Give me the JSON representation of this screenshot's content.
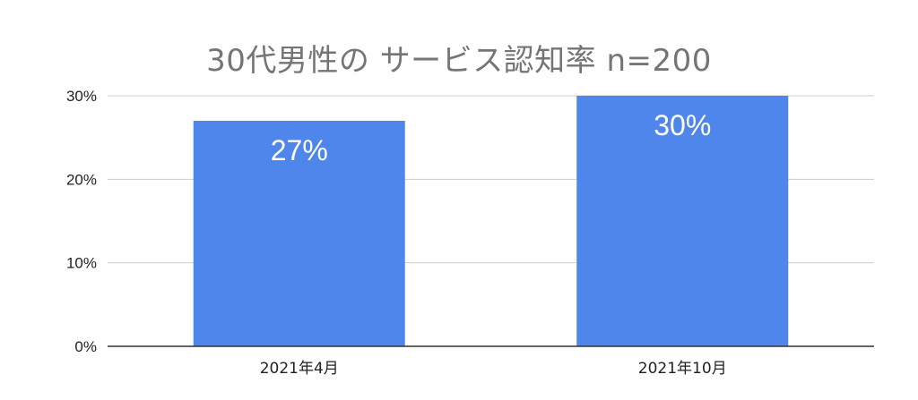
{
  "chart_data": {
    "type": "bar",
    "title": "30代男性の サービス認知率 n=200",
    "categories": [
      "2021年4月",
      "2021年10月"
    ],
    "values": [
      27,
      30
    ],
    "data_labels": [
      "27%",
      "30%"
    ],
    "ylim": [
      0,
      30
    ],
    "yticks": [
      0,
      10,
      20,
      30
    ],
    "ytick_labels": [
      "0%",
      "10%",
      "20%",
      "30%"
    ],
    "grid": true,
    "bar_color": "#4f86ec",
    "grid_color": "#cccccc",
    "axis_color": "#333333",
    "title_color": "#757575"
  }
}
